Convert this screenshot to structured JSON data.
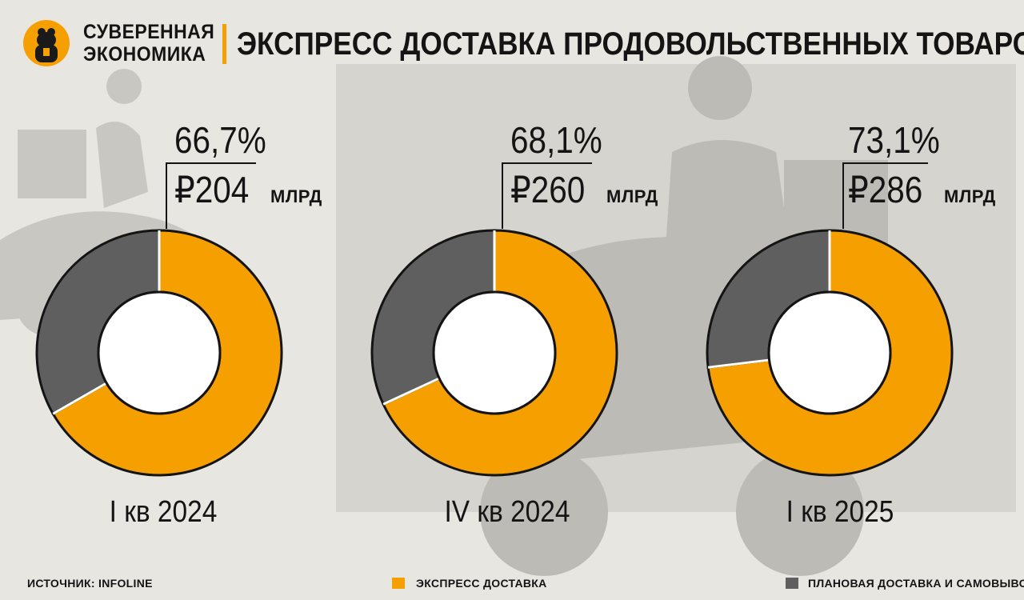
{
  "brand": {
    "line1": "СУВЕРЕННАЯ",
    "line2": "ЭКОНОМИКА"
  },
  "title": "ЭКСПРЕСС ДОСТАВКА ПРОДОВОЛЬСТВЕННЫХ ТОВАРОВ",
  "colors": {
    "express": "#f5a000",
    "planned": "#5f5f5f",
    "accent": "#f5a000",
    "background": "#e8e6e1"
  },
  "chart_data": [
    {
      "type": "pie",
      "title": "I кв 2024",
      "categories": [
        "ЭКСПРЕСС ДОСТАВКА",
        "ПЛАНОВАЯ ДОСТАВКА И САМОВЫВОЗ"
      ],
      "values": [
        66.7,
        33.3
      ],
      "label_pct": "66,7%",
      "label_amount": "₽204",
      "label_unit": "МЛРД"
    },
    {
      "type": "pie",
      "title": "IV кв 2024",
      "categories": [
        "ЭКСПРЕСС ДОСТАВКА",
        "ПЛАНОВАЯ ДОСТАВКА И САМОВЫВОЗ"
      ],
      "values": [
        68.1,
        31.9
      ],
      "label_pct": "68,1%",
      "label_amount": "₽260",
      "label_unit": "МЛРД"
    },
    {
      "type": "pie",
      "title": "I кв 2025",
      "categories": [
        "ЭКСПРЕСС ДОСТАВКА",
        "ПЛАНОВАЯ ДОСТАВКА И САМОВЫВОЗ"
      ],
      "values": [
        73.1,
        26.9
      ],
      "label_pct": "73,1%",
      "label_amount": "₽286",
      "label_unit": "МЛРД"
    }
  ],
  "footer": {
    "source": "ИСТОЧНИК: INFOLINE",
    "legend": [
      {
        "label": "ЭКСПРЕСС ДОСТАВКА",
        "color": "#f5a000"
      },
      {
        "label": "ПЛАНОВАЯ ДОСТАВКА И САМОВЫВОЗ",
        "color": "#5f5f5f"
      }
    ]
  }
}
